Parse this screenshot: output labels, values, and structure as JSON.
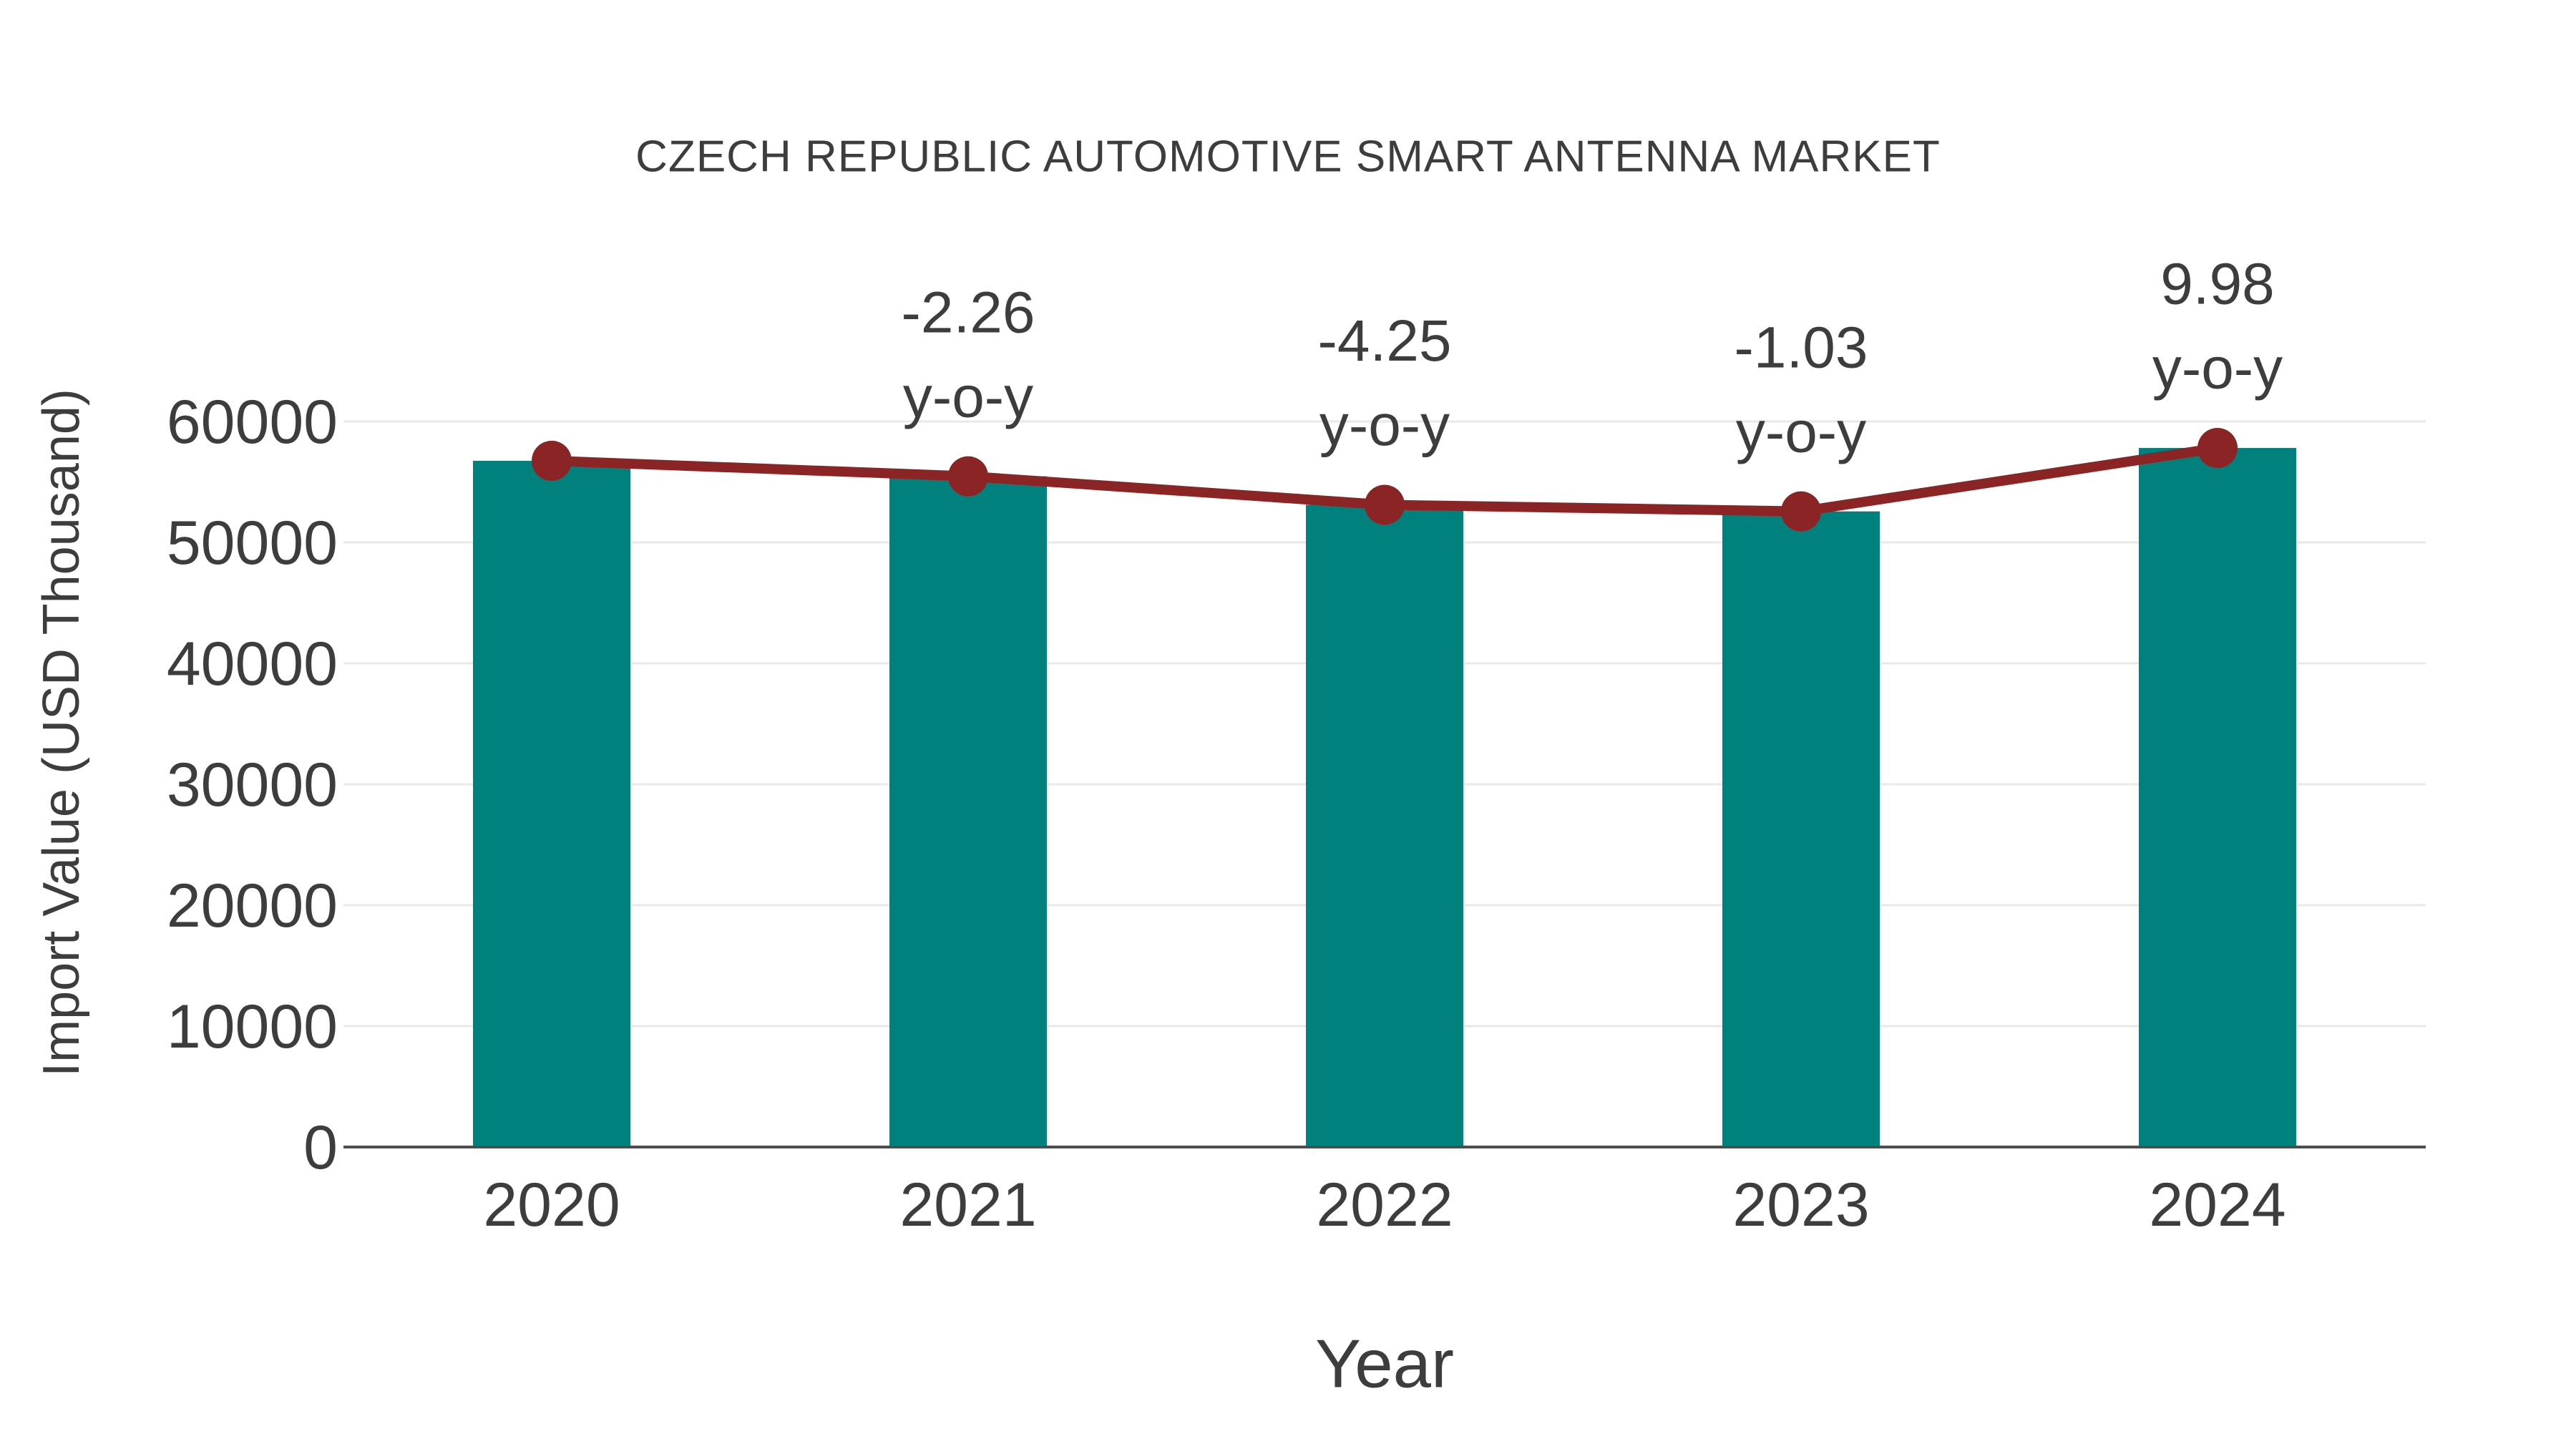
{
  "chart_data": {
    "type": "bar",
    "title": "CZECH REPUBLIC AUTOMOTIVE SMART ANTENNA MARKET",
    "xlabel": "Year",
    "ylabel": "Import Value (USD Thousand)",
    "categories": [
      "2020",
      "2021",
      "2022",
      "2023",
      "2024"
    ],
    "series": [
      {
        "name": "Import Value bars",
        "type": "bar",
        "values": [
          56750,
          55467,
          53110,
          52563,
          57808
        ]
      },
      {
        "name": "Import Value trend line",
        "type": "line",
        "values": [
          56750,
          55467,
          53110,
          52563,
          57808
        ]
      }
    ],
    "annotations": [
      {
        "category": "2021",
        "lines": [
          "-2.26",
          "y-o-y"
        ]
      },
      {
        "category": "2022",
        "lines": [
          "-4.25",
          "y-o-y"
        ]
      },
      {
        "category": "2023",
        "lines": [
          "-1.03",
          "y-o-y"
        ]
      },
      {
        "category": "2024",
        "lines": [
          "9.98",
          "y-o-y"
        ]
      }
    ],
    "yticks": [
      0,
      10000,
      20000,
      30000,
      40000,
      50000,
      60000
    ],
    "ylim": [
      0,
      63000
    ],
    "grid": "horizontal",
    "legend": "none",
    "colors": {
      "bar": "#00817E",
      "line": "#8B2525",
      "marker": "#8B2525",
      "gridline": "#E8E8E8",
      "axis_line": "#4D4D4D",
      "text": "#3D3D3D"
    }
  }
}
